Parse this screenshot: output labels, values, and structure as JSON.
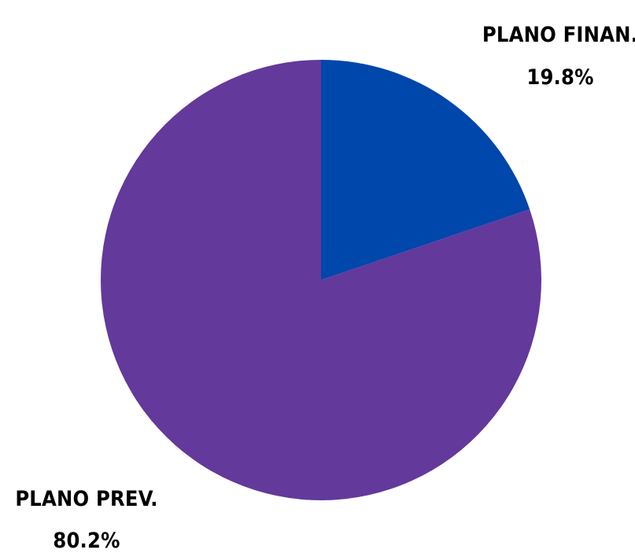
{
  "chart_data": {
    "type": "pie",
    "slices": [
      {
        "label": "PLANO FINAN.",
        "value": 19.8,
        "value_label": "19.8%",
        "color": "#0047ab"
      },
      {
        "label": "PLANO PREV.",
        "value": 80.2,
        "value_label": "80.2%",
        "color": "#63399b"
      }
    ],
    "title": "",
    "start_angle": "12 o'clock",
    "direction": "clockwise",
    "legend": "none"
  }
}
